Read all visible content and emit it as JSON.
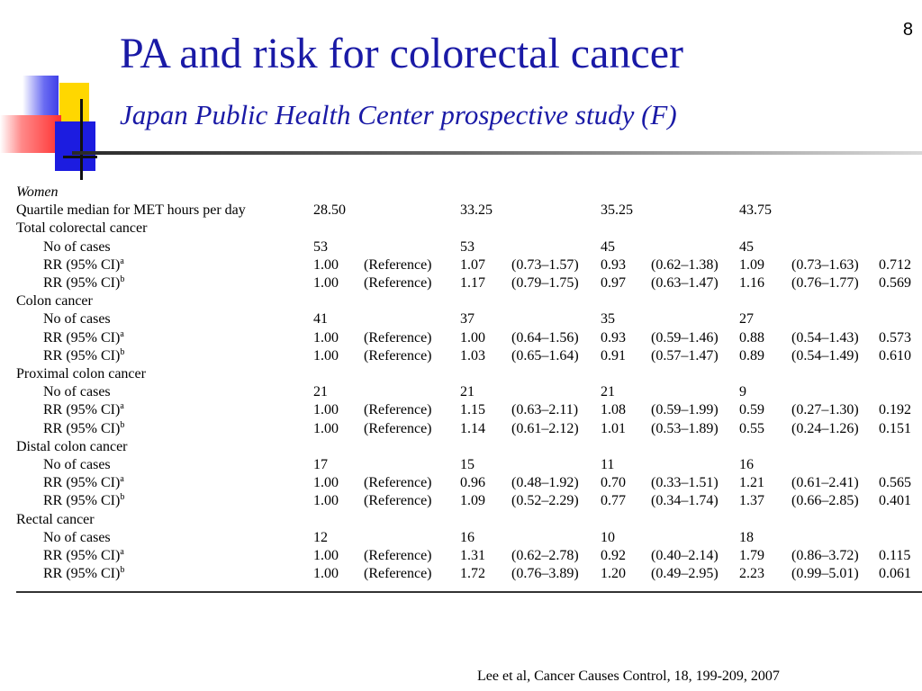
{
  "slide": {
    "number": "8",
    "title": "PA and risk for colorectal cancer",
    "subtitle": "Japan Public Health Center prospective study (F)",
    "citation": "Lee et al, Cancer Causes Control, 18, 199-209, 2007"
  },
  "table": {
    "group_label": "Women",
    "quartile_label": "Quartile median for MET hours per day",
    "quartile_values": [
      "28.50",
      "33.25",
      "35.25",
      "43.75"
    ],
    "sections": [
      {
        "name": "Total colorectal cancer",
        "cases_label": "No of cases",
        "cases": [
          "53",
          "53",
          "45",
          "45"
        ],
        "rr_label": "RR (95% CI)",
        "rows": [
          {
            "sup": "a",
            "values": [
              "1.00",
              "(Reference)",
              "1.07",
              "(0.73–1.57)",
              "0.93",
              "(0.62–1.38)",
              "1.09",
              "(0.73–1.63)",
              "0.712"
            ]
          },
          {
            "sup": "b",
            "values": [
              "1.00",
              "(Reference)",
              "1.17",
              "(0.79–1.75)",
              "0.97",
              "(0.63–1.47)",
              "1.16",
              "(0.76–1.77)",
              "0.569"
            ]
          }
        ]
      },
      {
        "name": "Colon cancer",
        "cases_label": "No of cases",
        "cases": [
          "41",
          "37",
          "35",
          "27"
        ],
        "rr_label": "RR (95% CI)",
        "rows": [
          {
            "sup": "a",
            "values": [
              "1.00",
              "(Reference)",
              "1.00",
              "(0.64–1.56)",
              "0.93",
              "(0.59–1.46)",
              "0.88",
              "(0.54–1.43)",
              "0.573"
            ]
          },
          {
            "sup": "b",
            "values": [
              "1.00",
              "(Reference)",
              "1.03",
              "(0.65–1.64)",
              "0.91",
              "(0.57–1.47)",
              "0.89",
              "(0.54–1.49)",
              "0.610"
            ]
          }
        ]
      },
      {
        "name": "Proximal colon cancer",
        "cases_label": "No of cases",
        "cases": [
          "21",
          "21",
          "21",
          "9"
        ],
        "rr_label": "RR (95% CI)",
        "rows": [
          {
            "sup": "a",
            "values": [
              "1.00",
              "(Reference)",
              "1.15",
              "(0.63–2.11)",
              "1.08",
              "(0.59–1.99)",
              "0.59",
              "(0.27–1.30)",
              "0.192"
            ]
          },
          {
            "sup": "b",
            "values": [
              "1.00",
              "(Reference)",
              "1.14",
              "(0.61–2.12)",
              "1.01",
              "(0.53–1.89)",
              "0.55",
              "(0.24–1.26)",
              "0.151"
            ]
          }
        ]
      },
      {
        "name": "Distal colon cancer",
        "cases_label": "No of cases",
        "cases": [
          "17",
          "15",
          "11",
          "16"
        ],
        "rr_label": "RR (95% CI)",
        "rows": [
          {
            "sup": "a",
            "values": [
              "1.00",
              "(Reference)",
              "0.96",
              "(0.48–1.92)",
              "0.70",
              "(0.33–1.51)",
              "1.21",
              "(0.61–2.41)",
              "0.565"
            ]
          },
          {
            "sup": "b",
            "values": [
              "1.00",
              "(Reference)",
              "1.09",
              "(0.52–2.29)",
              "0.77",
              "(0.34–1.74)",
              "1.37",
              "(0.66–2.85)",
              "0.401"
            ]
          }
        ]
      },
      {
        "name": "Rectal cancer",
        "cases_label": "No of cases",
        "cases": [
          "12",
          "16",
          "10",
          "18"
        ],
        "rr_label": "RR (95% CI)",
        "rows": [
          {
            "sup": "a",
            "values": [
              "1.00",
              "(Reference)",
              "1.31",
              "(0.62–2.78)",
              "0.92",
              "(0.40–2.14)",
              "1.79",
              "(0.86–3.72)",
              "0.115"
            ]
          },
          {
            "sup": "b",
            "values": [
              "1.00",
              "(Reference)",
              "1.72",
              "(0.76–3.89)",
              "1.20",
              "(0.49–2.95)",
              "2.23",
              "(0.99–5.01)",
              "0.061"
            ]
          }
        ]
      }
    ]
  }
}
